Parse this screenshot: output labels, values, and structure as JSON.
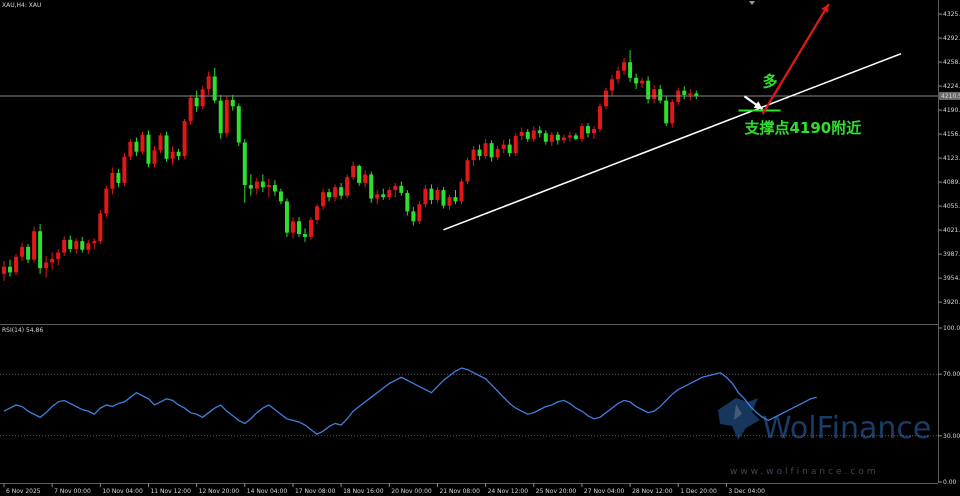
{
  "chart_data": [
    {
      "type": "candlestick",
      "symbol_label": "XAU,H4:  XAU",
      "ylim": [
        3895,
        4340
      ],
      "y_ticks": [
        "4325.80",
        "4292.00",
        "4258.20",
        "4224.40",
        "4190.60",
        "4156.80",
        "4123.00",
        "4089.20",
        "4055.40",
        "4021.60",
        "3987.80",
        "3954.00",
        "3920.20"
      ],
      "y_tick_values": [
        4325.8,
        4292.0,
        4258.2,
        4224.4,
        4190.6,
        4156.8,
        4123.0,
        4089.2,
        4055.4,
        4021.6,
        3987.8,
        3954.0,
        3920.2
      ],
      "current_price_label": "4210.5",
      "current_price": 4210.5,
      "x_ticks": [
        "6 Nov 2025",
        "7 Nov 00:00",
        "10 Nov 04:00",
        "11 Nov 12:00",
        "12 Nov 20:00",
        "14 Nov 04:00",
        "17 Nov 08:00",
        "18 Nov 16:00",
        "20 Nov 00:00",
        "21 Nov 08:00",
        "24 Nov 12:00",
        "25 Nov 20:00",
        "27 Nov 04:00",
        "28 Nov 12:00",
        "1 Dec 20:00",
        "3 Dec 04:00"
      ],
      "x_tick_index": [
        0,
        8,
        16,
        24,
        32,
        40,
        48,
        56,
        64,
        72,
        80,
        88,
        96,
        104,
        112,
        120
      ],
      "candles": [
        {
          "o": 3960,
          "h": 3978,
          "l": 3950,
          "c": 3970
        },
        {
          "o": 3970,
          "h": 3980,
          "l": 3956,
          "c": 3962
        },
        {
          "o": 3962,
          "h": 3988,
          "l": 3958,
          "c": 3984
        },
        {
          "o": 3984,
          "h": 4004,
          "l": 3978,
          "c": 3998
        },
        {
          "o": 3998,
          "h": 4002,
          "l": 3975,
          "c": 3980
        },
        {
          "o": 3980,
          "h": 4026,
          "l": 3976,
          "c": 4020
        },
        {
          "o": 4020,
          "h": 4030,
          "l": 3960,
          "c": 3968
        },
        {
          "o": 3968,
          "h": 3985,
          "l": 3955,
          "c": 3976
        },
        {
          "o": 3976,
          "h": 3990,
          "l": 3966,
          "c": 3981
        },
        {
          "o": 3981,
          "h": 3995,
          "l": 3972,
          "c": 3990
        },
        {
          "o": 3990,
          "h": 4012,
          "l": 3985,
          "c": 4008
        },
        {
          "o": 4008,
          "h": 4014,
          "l": 3990,
          "c": 3995
        },
        {
          "o": 3995,
          "h": 4010,
          "l": 3988,
          "c": 4006
        },
        {
          "o": 4006,
          "h": 4012,
          "l": 3990,
          "c": 3994
        },
        {
          "o": 3994,
          "h": 4008,
          "l": 3988,
          "c": 4003
        },
        {
          "o": 4003,
          "h": 4010,
          "l": 3995,
          "c": 4006
        },
        {
          "o": 4006,
          "h": 4050,
          "l": 4002,
          "c": 4045
        },
        {
          "o": 4045,
          "h": 4084,
          "l": 4040,
          "c": 4080
        },
        {
          "o": 4080,
          "h": 4110,
          "l": 4072,
          "c": 4102
        },
        {
          "o": 4102,
          "h": 4108,
          "l": 4082,
          "c": 4088
        },
        {
          "o": 4088,
          "h": 4130,
          "l": 4084,
          "c": 4125
        },
        {
          "o": 4125,
          "h": 4150,
          "l": 4120,
          "c": 4146
        },
        {
          "o": 4146,
          "h": 4152,
          "l": 4126,
          "c": 4132
        },
        {
          "o": 4132,
          "h": 4160,
          "l": 4128,
          "c": 4156
        },
        {
          "o": 4156,
          "h": 4162,
          "l": 4110,
          "c": 4115
        },
        {
          "o": 4115,
          "h": 4140,
          "l": 4110,
          "c": 4134
        },
        {
          "o": 4134,
          "h": 4158,
          "l": 4130,
          "c": 4155
        },
        {
          "o": 4155,
          "h": 4160,
          "l": 4118,
          "c": 4122
        },
        {
          "o": 4122,
          "h": 4140,
          "l": 4114,
          "c": 4132
        },
        {
          "o": 4132,
          "h": 4136,
          "l": 4120,
          "c": 4126
        },
        {
          "o": 4126,
          "h": 4178,
          "l": 4122,
          "c": 4175
        },
        {
          "o": 4175,
          "h": 4212,
          "l": 4170,
          "c": 4208
        },
        {
          "o": 4208,
          "h": 4218,
          "l": 4188,
          "c": 4196
        },
        {
          "o": 4196,
          "h": 4225,
          "l": 4192,
          "c": 4220
        },
        {
          "o": 4220,
          "h": 4245,
          "l": 4212,
          "c": 4238
        },
        {
          "o": 4238,
          "h": 4250,
          "l": 4200,
          "c": 4204
        },
        {
          "o": 4204,
          "h": 4212,
          "l": 4150,
          "c": 4158
        },
        {
          "o": 4158,
          "h": 4210,
          "l": 4152,
          "c": 4205
        },
        {
          "o": 4205,
          "h": 4212,
          "l": 4190,
          "c": 4196
        },
        {
          "o": 4196,
          "h": 4200,
          "l": 4140,
          "c": 4145
        },
        {
          "o": 4145,
          "h": 4150,
          "l": 4060,
          "c": 4085
        },
        {
          "o": 4085,
          "h": 4100,
          "l": 4070,
          "c": 4080
        },
        {
          "o": 4080,
          "h": 4095,
          "l": 4072,
          "c": 4090
        },
        {
          "o": 4090,
          "h": 4100,
          "l": 4075,
          "c": 4082
        },
        {
          "o": 4082,
          "h": 4094,
          "l": 4068,
          "c": 4085
        },
        {
          "o": 4085,
          "h": 4092,
          "l": 4070,
          "c": 4076
        },
        {
          "o": 4076,
          "h": 4080,
          "l": 4058,
          "c": 4062
        },
        {
          "o": 4062,
          "h": 4066,
          "l": 4012,
          "c": 4018
        },
        {
          "o": 4018,
          "h": 4040,
          "l": 4010,
          "c": 4034
        },
        {
          "o": 4034,
          "h": 4040,
          "l": 4012,
          "c": 4016
        },
        {
          "o": 4016,
          "h": 4024,
          "l": 4005,
          "c": 4012
        },
        {
          "o": 4012,
          "h": 4040,
          "l": 4008,
          "c": 4036
        },
        {
          "o": 4036,
          "h": 4058,
          "l": 4030,
          "c": 4055
        },
        {
          "o": 4055,
          "h": 4080,
          "l": 4050,
          "c": 4075
        },
        {
          "o": 4075,
          "h": 4080,
          "l": 4062,
          "c": 4068
        },
        {
          "o": 4068,
          "h": 4086,
          "l": 4062,
          "c": 4082
        },
        {
          "o": 4082,
          "h": 4088,
          "l": 4065,
          "c": 4070
        },
        {
          "o": 4070,
          "h": 4100,
          "l": 4066,
          "c": 4096
        },
        {
          "o": 4096,
          "h": 4118,
          "l": 4092,
          "c": 4112
        },
        {
          "o": 4112,
          "h": 4114,
          "l": 4084,
          "c": 4088
        },
        {
          "o": 4088,
          "h": 4106,
          "l": 4082,
          "c": 4100
        },
        {
          "o": 4100,
          "h": 4104,
          "l": 4060,
          "c": 4066
        },
        {
          "o": 4066,
          "h": 4078,
          "l": 4058,
          "c": 4072
        },
        {
          "o": 4072,
          "h": 4080,
          "l": 4064,
          "c": 4068
        },
        {
          "o": 4068,
          "h": 4082,
          "l": 4064,
          "c": 4078
        },
        {
          "o": 4078,
          "h": 4088,
          "l": 4068,
          "c": 4084
        },
        {
          "o": 4084,
          "h": 4090,
          "l": 4070,
          "c": 4074
        },
        {
          "o": 4074,
          "h": 4078,
          "l": 4042,
          "c": 4048
        },
        {
          "o": 4048,
          "h": 4054,
          "l": 4028,
          "c": 4034
        },
        {
          "o": 4034,
          "h": 4062,
          "l": 4030,
          "c": 4058
        },
        {
          "o": 4058,
          "h": 4085,
          "l": 4054,
          "c": 4080
        },
        {
          "o": 4080,
          "h": 4086,
          "l": 4058,
          "c": 4064
        },
        {
          "o": 4064,
          "h": 4082,
          "l": 4060,
          "c": 4078
        },
        {
          "o": 4078,
          "h": 4082,
          "l": 4052,
          "c": 4056
        },
        {
          "o": 4056,
          "h": 4072,
          "l": 4050,
          "c": 4068
        },
        {
          "o": 4068,
          "h": 4078,
          "l": 4058,
          "c": 4062
        },
        {
          "o": 4062,
          "h": 4094,
          "l": 4058,
          "c": 4090
        },
        {
          "o": 4090,
          "h": 4124,
          "l": 4086,
          "c": 4120
        },
        {
          "o": 4120,
          "h": 4140,
          "l": 4112,
          "c": 4135
        },
        {
          "o": 4135,
          "h": 4142,
          "l": 4120,
          "c": 4126
        },
        {
          "o": 4126,
          "h": 4150,
          "l": 4122,
          "c": 4144
        },
        {
          "o": 4144,
          "h": 4148,
          "l": 4118,
          "c": 4124
        },
        {
          "o": 4124,
          "h": 4140,
          "l": 4120,
          "c": 4136
        },
        {
          "o": 4136,
          "h": 4148,
          "l": 4130,
          "c": 4142
        },
        {
          "o": 4142,
          "h": 4150,
          "l": 4125,
          "c": 4130
        },
        {
          "o": 4130,
          "h": 4158,
          "l": 4126,
          "c": 4154
        },
        {
          "o": 4154,
          "h": 4166,
          "l": 4148,
          "c": 4160
        },
        {
          "o": 4160,
          "h": 4164,
          "l": 4146,
          "c": 4150
        },
        {
          "o": 4150,
          "h": 4168,
          "l": 4146,
          "c": 4162
        },
        {
          "o": 4162,
          "h": 4168,
          "l": 4152,
          "c": 4158
        },
        {
          "o": 4158,
          "h": 4162,
          "l": 4142,
          "c": 4146
        },
        {
          "o": 4146,
          "h": 4160,
          "l": 4140,
          "c": 4156
        },
        {
          "o": 4156,
          "h": 4160,
          "l": 4142,
          "c": 4148
        },
        {
          "o": 4148,
          "h": 4156,
          "l": 4144,
          "c": 4152
        },
        {
          "o": 4152,
          "h": 4160,
          "l": 4146,
          "c": 4155
        },
        {
          "o": 4155,
          "h": 4158,
          "l": 4148,
          "c": 4150
        },
        {
          "o": 4150,
          "h": 4172,
          "l": 4146,
          "c": 4168
        },
        {
          "o": 4168,
          "h": 4172,
          "l": 4152,
          "c": 4158
        },
        {
          "o": 4158,
          "h": 4168,
          "l": 4150,
          "c": 4164
        },
        {
          "o": 4164,
          "h": 4200,
          "l": 4160,
          "c": 4196
        },
        {
          "o": 4196,
          "h": 4222,
          "l": 4192,
          "c": 4218
        },
        {
          "o": 4218,
          "h": 4240,
          "l": 4210,
          "c": 4234
        },
        {
          "o": 4234,
          "h": 4252,
          "l": 4228,
          "c": 4246
        },
        {
          "o": 4246,
          "h": 4264,
          "l": 4240,
          "c": 4258
        },
        {
          "o": 4258,
          "h": 4275,
          "l": 4230,
          "c": 4236
        },
        {
          "o": 4236,
          "h": 4242,
          "l": 4220,
          "c": 4228
        },
        {
          "o": 4228,
          "h": 4236,
          "l": 4222,
          "c": 4232
        },
        {
          "o": 4232,
          "h": 4238,
          "l": 4200,
          "c": 4206
        },
        {
          "o": 4206,
          "h": 4226,
          "l": 4200,
          "c": 4220
        },
        {
          "o": 4220,
          "h": 4226,
          "l": 4200,
          "c": 4204
        },
        {
          "o": 4204,
          "h": 4210,
          "l": 4168,
          "c": 4172
        },
        {
          "o": 4172,
          "h": 4206,
          "l": 4166,
          "c": 4202
        },
        {
          "o": 4202,
          "h": 4222,
          "l": 4198,
          "c": 4218
        },
        {
          "o": 4218,
          "h": 4224,
          "l": 4206,
          "c": 4212
        },
        {
          "o": 4212,
          "h": 4220,
          "l": 4204,
          "c": 4214
        },
        {
          "o": 4214,
          "h": 4218,
          "l": 4206,
          "c": 4210
        }
      ],
      "trendline": {
        "from": {
          "i": 73,
          "price": 4022
        },
        "to": {
          "i": 149,
          "price": 4270
        }
      },
      "annotations": [
        {
          "text": "多",
          "i": 126,
          "price": 4224
        },
        {
          "text": "支撑点4190附近",
          "i": 123,
          "price": 4158
        }
      ],
      "arrows": [
        {
          "color": "#e01818",
          "from": {
            "i": 126,
            "price": 4185
          },
          "to": {
            "i": 137,
            "price": 4340
          }
        },
        {
          "color": "#ffffff",
          "from": {
            "i": 123,
            "price": 4210
          },
          "to": {
            "i": 126,
            "price": 4192
          }
        }
      ],
      "support": {
        "price": 4190,
        "from_i": 122,
        "to_i": 129,
        "color": "#2ee02e"
      },
      "colors": {
        "bull": "#e01818",
        "bear": "#2ee02e",
        "current_line": "#8a8a8a"
      }
    },
    {
      "type": "line",
      "header": "RSI(14) 54.86",
      "ylim": [
        0,
        100
      ],
      "y_ticks": [
        "100.00",
        "70.00",
        "30.00",
        "0.00"
      ],
      "y_tick_values": [
        100,
        70,
        30,
        0
      ],
      "levels": [
        70,
        30
      ],
      "values": [
        46,
        48,
        50,
        49,
        46,
        44,
        42,
        45,
        49,
        52,
        53,
        51,
        49,
        47,
        46,
        44,
        48,
        50,
        49,
        51,
        52,
        55,
        58,
        56,
        54,
        50,
        52,
        54,
        53,
        50,
        48,
        45,
        44,
        42,
        45,
        48,
        50,
        46,
        43,
        40,
        38,
        41,
        45,
        48,
        50,
        47,
        44,
        41,
        40,
        39,
        37,
        34,
        31,
        33,
        36,
        38,
        37,
        41,
        46,
        49,
        52,
        55,
        58,
        61,
        64,
        66,
        68,
        66,
        64,
        62,
        60,
        58,
        62,
        66,
        69,
        72,
        74,
        73,
        71,
        69,
        67,
        63,
        59,
        55,
        51,
        48,
        46,
        44,
        45,
        47,
        49,
        50,
        52,
        53,
        51,
        48,
        46,
        43,
        41,
        42,
        45,
        48,
        51,
        53,
        52,
        49,
        47,
        45,
        46,
        49,
        53,
        57,
        60,
        62,
        64,
        66,
        68,
        69,
        70,
        71,
        68,
        64,
        58,
        54,
        49,
        45,
        42,
        40,
        42,
        44,
        46,
        48,
        50,
        52,
        54,
        55
      ],
      "series_color": "#3f7fe0"
    }
  ],
  "watermark": {
    "brand": "WolFinance",
    "url": "www.wolfinance.com"
  }
}
